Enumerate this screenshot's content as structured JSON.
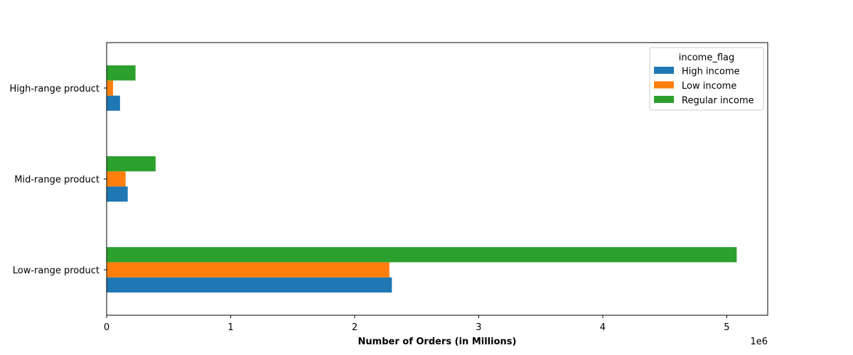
{
  "chart_data": {
    "type": "bar",
    "orientation": "horizontal",
    "categories": [
      "Low-range product",
      "Mid-range product",
      "High-range product"
    ],
    "series": [
      {
        "name": "High income",
        "color": "#1f77b4",
        "values": [
          2300000,
          170000,
          108000
        ]
      },
      {
        "name": "Low income",
        "color": "#ff7f0e",
        "values": [
          2280000,
          153000,
          52000
        ]
      },
      {
        "name": "Regular income",
        "color": "#2ca02c",
        "values": [
          5080000,
          395000,
          233000
        ]
      }
    ],
    "xlabel": "Number of Orders (in Millions)",
    "ylabel": "",
    "xlim": [
      0,
      5330000
    ],
    "xticks": [
      0,
      1,
      2,
      3,
      4,
      5
    ],
    "x_offset_label": "1e6",
    "legend": {
      "title": "income_flag",
      "position": "top-right"
    },
    "grid": false
  }
}
